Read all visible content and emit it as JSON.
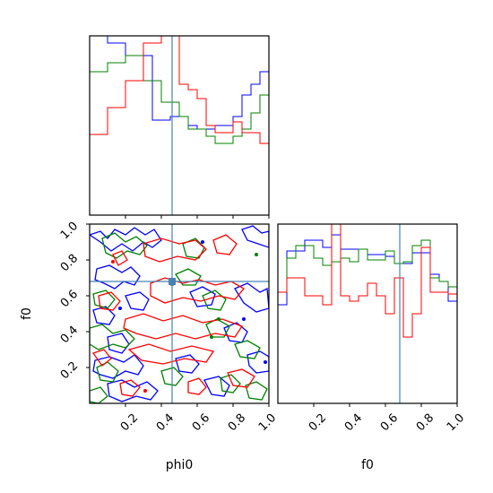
{
  "chart_data": {
    "type": "corner",
    "parameters": [
      "phi0",
      "f0"
    ],
    "truths": {
      "phi0": 0.46,
      "f0": 0.68
    },
    "truth_color": "#4682b4",
    "series_colors": {
      "blue": "#0000ff",
      "green": "#008000",
      "red": "#ff0000"
    },
    "bins": 20,
    "range": [
      0,
      1
    ],
    "ticks": [
      0.2,
      0.4,
      0.6,
      0.8,
      1.0
    ],
    "tick_labels": [
      "0.2",
      "0.4",
      "0.6",
      "0.8",
      "1.0"
    ],
    "xlabels": {
      "phi0": "phi0",
      "f0": "f0"
    },
    "ylabels": {
      "f0": "f0"
    },
    "hist_phi0": {
      "blue": [
        1.0,
        1.0,
        0.96,
        0.96,
        0.89,
        0.89,
        0.89,
        0.53,
        0.53,
        0.55,
        0.55,
        0.5,
        0.48,
        0.48,
        0.5,
        0.5,
        0.55,
        0.67,
        0.73,
        0.8
      ],
      "green": [
        0.8,
        0.8,
        0.85,
        0.85,
        0.89,
        0.89,
        0.75,
        0.75,
        0.63,
        0.63,
        0.55,
        0.48,
        0.48,
        0.44,
        0.4,
        0.4,
        0.44,
        0.48,
        0.57,
        0.67
      ],
      "red": [
        0.45,
        0.45,
        0.6,
        0.6,
        0.75,
        0.75,
        0.96,
        0.96,
        1.0,
        1.0,
        0.73,
        0.7,
        0.65,
        0.5,
        0.46,
        0.46,
        0.52,
        0.46,
        0.46,
        0.4
      ]
    },
    "hist_f0": {
      "blue": [
        0.55,
        0.85,
        0.85,
        0.91,
        0.91,
        0.87,
        0.94,
        0.86,
        0.86,
        0.86,
        0.83,
        0.83,
        0.82,
        0.78,
        0.78,
        0.84,
        0.84,
        0.72,
        0.68,
        0.57
      ],
      "green": [
        0.62,
        0.81,
        0.88,
        0.88,
        0.81,
        0.77,
        0.79,
        0.81,
        0.79,
        0.86,
        0.8,
        0.8,
        0.85,
        0.78,
        0.79,
        0.88,
        0.91,
        0.7,
        0.68,
        0.65
      ],
      "red": [
        0.62,
        0.7,
        0.7,
        0.6,
        0.6,
        0.55,
        1.0,
        0.6,
        0.57,
        0.6,
        0.67,
        0.6,
        0.5,
        0.7,
        0.37,
        0.5,
        0.87,
        0.62,
        0.62,
        0.61
      ]
    }
  }
}
